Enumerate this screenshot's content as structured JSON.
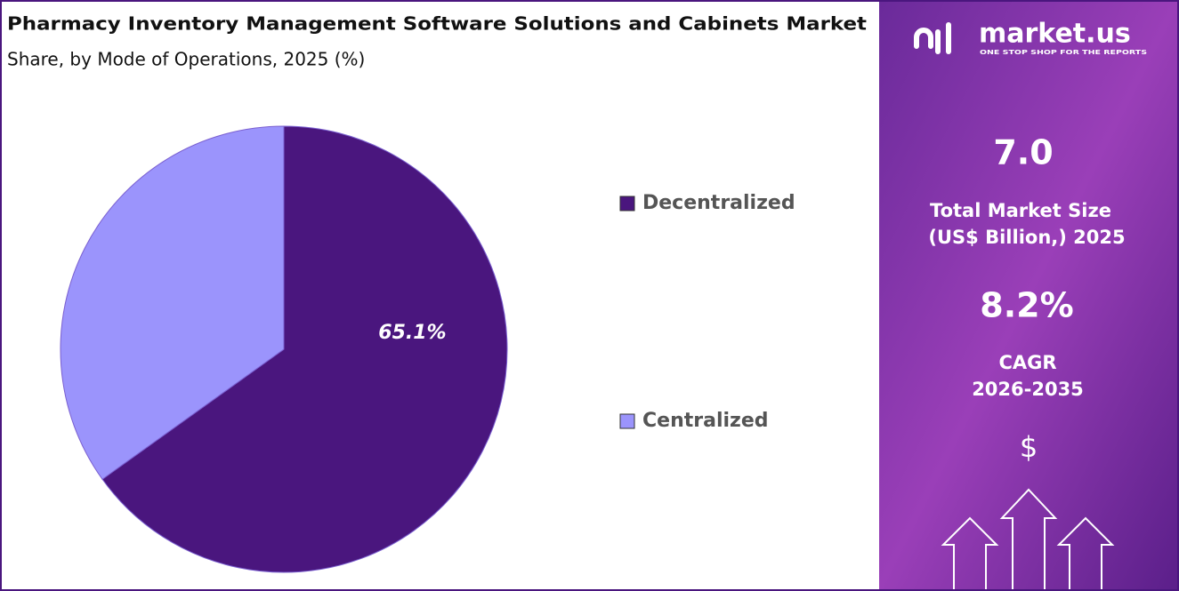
{
  "chart_data": {
    "type": "pie",
    "title": "Pharmacy Inventory Management Software Solutions and Cabinets  Market",
    "subtitle": "Share, by Mode of Operations, 2025 (%)",
    "categories": [
      "Decentralized",
      "Centralized"
    ],
    "values": [
      65.1,
      34.9
    ],
    "value_labels": [
      "65.1%",
      null
    ],
    "colors": [
      "#4a167e",
      "#9b94fc"
    ]
  },
  "panel": {
    "brand": "market.us",
    "tagline": "ONE STOP SHOP FOR THE REPORTS",
    "market_size": "7.0",
    "market_size_label_1": "Total Market Size",
    "market_size_label_2": "(US$ Billion,) 2025",
    "cagr": "8.2%",
    "cagr_label_1": "CAGR",
    "cagr_label_2": "2026-2035",
    "currency": "$"
  }
}
